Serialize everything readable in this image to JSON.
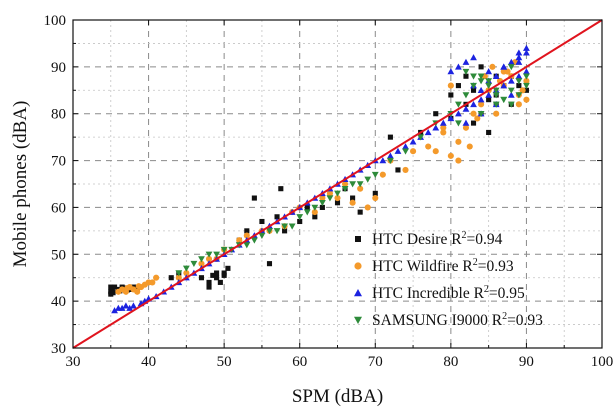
{
  "chart_data": {
    "type": "scatter",
    "xlabel": "SPM (dBA)",
    "ylabel": "Mobile phones (dBA)",
    "xlim": [
      30,
      100
    ],
    "ylim": [
      30,
      100
    ],
    "xticks": [
      30,
      40,
      50,
      60,
      70,
      80,
      90,
      100
    ],
    "yticks": [
      30,
      40,
      50,
      60,
      70,
      80,
      90,
      100
    ],
    "grid": true,
    "legend_position": "bottom-right",
    "reference_line": {
      "x": [
        30,
        100
      ],
      "y": [
        30,
        100
      ],
      "color": "#e0141e"
    },
    "series": [
      {
        "name": "HTC Desire",
        "r2_label": "R",
        "r2_value": "=0.94",
        "marker": "square",
        "color": "#111111",
        "x": [
          35,
          35,
          35,
          35.2,
          35.5,
          36,
          36.5,
          37,
          37.5,
          38,
          38.5,
          35.3,
          36.2,
          37.2,
          38.2,
          43,
          44,
          47,
          48,
          48.5,
          49,
          49.5,
          50,
          50.5,
          48,
          49,
          50,
          54,
          55,
          57,
          57.5,
          58,
          53,
          52,
          56,
          60,
          61,
          62,
          63,
          64,
          65,
          66,
          67,
          68,
          70,
          72,
          73,
          76,
          78,
          80,
          80,
          81,
          82,
          83,
          84,
          85,
          85,
          86,
          86,
          87,
          88,
          89,
          90,
          82,
          84,
          83,
          86,
          88
        ],
        "y": [
          41.5,
          42,
          43,
          42.5,
          43,
          42.5,
          43,
          42.8,
          42.5,
          43,
          42.5,
          41.8,
          42.2,
          42.4,
          42.7,
          45,
          46,
          45,
          44,
          45.5,
          46,
          44,
          46,
          47,
          43,
          45,
          45.5,
          62,
          57,
          58,
          64,
          55,
          55,
          53,
          48,
          57,
          60,
          58,
          60,
          63,
          61,
          64,
          62,
          59,
          63,
          75,
          68,
          76,
          80,
          79,
          84,
          86,
          82,
          85,
          80,
          83,
          76,
          82,
          84,
          86,
          88,
          86,
          85,
          88,
          90,
          78,
          88,
          82
        ]
      },
      {
        "name": "HTC Wildfire",
        "r2_label": "R",
        "r2_value": "=0.93",
        "marker": "circle",
        "color": "#f49a2b",
        "x": [
          36,
          36.5,
          37,
          37.5,
          38,
          38.5,
          39,
          39.5,
          40,
          40.5,
          41,
          37.2,
          38.7,
          44,
          45,
          47,
          48,
          49,
          50,
          52,
          53,
          55,
          56,
          58,
          59,
          60,
          62,
          63,
          64,
          65,
          66,
          67,
          68,
          69,
          70,
          71,
          72,
          74,
          75,
          77,
          78,
          79,
          80,
          81,
          82,
          83,
          84,
          85,
          86,
          87,
          88,
          89,
          90,
          81,
          82.5,
          83.5,
          84.5,
          85.5,
          86.5,
          87.5,
          88.5,
          89.5,
          90,
          79,
          80,
          85,
          87,
          89
        ],
        "y": [
          42,
          42.5,
          42,
          43,
          42.5,
          42,
          43,
          43.5,
          44,
          44,
          45,
          42.8,
          43.2,
          45,
          46,
          48,
          49,
          49,
          51,
          53,
          54,
          55,
          55,
          56,
          59,
          60,
          59,
          62,
          63,
          62,
          65,
          61,
          64,
          60,
          62,
          67,
          70,
          68,
          72,
          73,
          72,
          76,
          71,
          74,
          77,
          80,
          82,
          85,
          80,
          86,
          88,
          84,
          83,
          70,
          73,
          79,
          88,
          90,
          87,
          89,
          91,
          85,
          87,
          77,
          86,
          85,
          89,
          82
        ]
      },
      {
        "name": "HTC Incredible",
        "r2_label": "R",
        "r2_value": "=0.95",
        "marker": "triangle-up",
        "color": "#1c23e0",
        "x": [
          35.5,
          36,
          36.5,
          37,
          37.5,
          38,
          39,
          39.5,
          40,
          41,
          42,
          43,
          44,
          45,
          46,
          47,
          48,
          49,
          50,
          51,
          52,
          53,
          54,
          55,
          56,
          57,
          58,
          59,
          60,
          61,
          62,
          63,
          64,
          65,
          66,
          67,
          68,
          69,
          70,
          71,
          72,
          73,
          74,
          75,
          76,
          77,
          78,
          79,
          80,
          81,
          82,
          83,
          84,
          85,
          86,
          87,
          88,
          89,
          90,
          80,
          81,
          82,
          83,
          84,
          85,
          86,
          87,
          88,
          89,
          90,
          82,
          84,
          86,
          88,
          89,
          90,
          83,
          85,
          87,
          89
        ],
        "y": [
          38,
          38.5,
          38.5,
          39,
          38.5,
          39,
          39.5,
          40,
          40.5,
          41,
          42,
          43,
          44,
          45,
          46,
          47,
          48,
          49,
          50,
          51,
          52,
          53,
          54,
          55,
          56,
          57,
          58,
          59,
          60,
          61,
          62,
          63,
          64,
          65,
          66,
          67,
          68,
          69,
          70,
          70,
          71,
          72,
          73,
          74,
          75,
          76,
          77,
          78,
          79,
          80,
          81,
          82,
          83,
          84,
          85,
          86,
          87,
          88,
          89,
          89,
          90,
          91,
          92,
          85,
          87,
          88,
          90,
          91,
          93,
          94,
          78,
          80,
          82,
          84,
          92,
          93,
          86,
          89,
          90,
          91
        ]
      },
      {
        "name": "SAMSUNG I9000",
        "r2_label": "R",
        "r2_value": "=0.93",
        "marker": "triangle-down",
        "color": "#2e8b3a",
        "x": [
          44,
          45,
          46,
          47,
          48,
          49,
          50,
          51,
          52,
          53,
          54,
          55,
          56,
          57,
          58,
          59,
          60,
          61,
          62,
          63,
          64,
          65,
          66,
          67,
          68,
          69,
          70,
          72,
          74,
          76,
          78,
          80,
          81,
          82,
          83,
          84,
          85,
          86,
          87,
          88,
          89,
          90,
          82,
          83,
          84,
          85,
          86,
          87,
          88,
          89,
          90,
          81,
          84,
          86,
          88
        ],
        "y": [
          46,
          47,
          48,
          49,
          50,
          50,
          51,
          51,
          52,
          52,
          53,
          54,
          55,
          55,
          56,
          56,
          58,
          59,
          60,
          61,
          62,
          63,
          64,
          65,
          65,
          66,
          67,
          70,
          72,
          75,
          78,
          80,
          82,
          84,
          86,
          88,
          87,
          85,
          83,
          82,
          84,
          86,
          89,
          88,
          87,
          86,
          84,
          83,
          85,
          87,
          88,
          78,
          80,
          82,
          90
        ]
      }
    ]
  }
}
